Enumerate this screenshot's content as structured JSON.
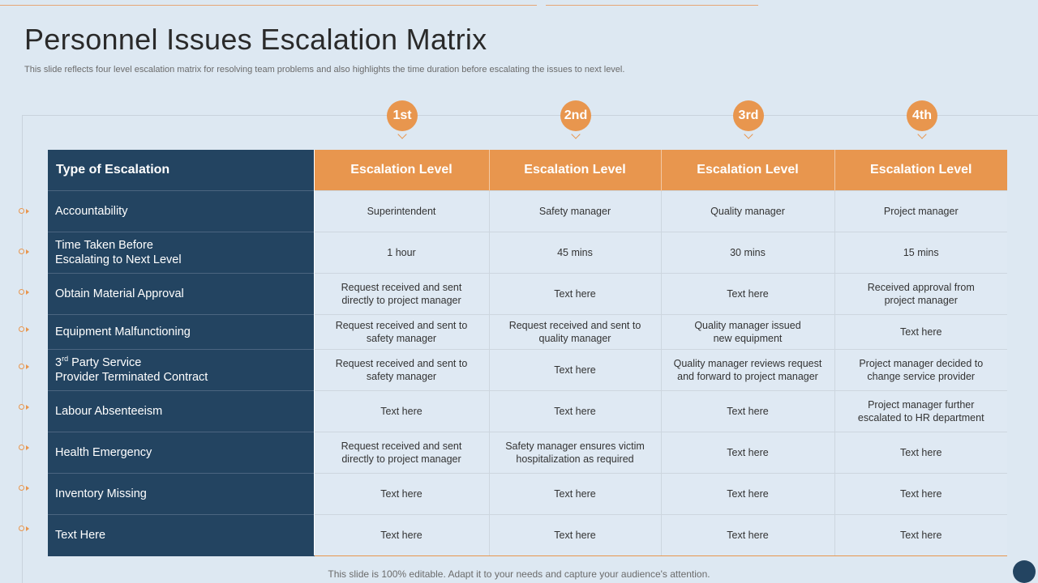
{
  "slide": {
    "title": "Personnel Issues Escalation Matrix",
    "subtitle": "This slide reflects four level escalation matrix for resolving team problems and also highlights the time duration before escalating the issues to next level.",
    "footer": "This slide is 100% editable. Adapt it to your needs and capture your audience's attention."
  },
  "levels": [
    "1st",
    "2nd",
    "3rd",
    "4th"
  ],
  "table": {
    "type_header": "Type of Escalation",
    "level_headers": [
      "Escalation Level",
      "Escalation Level",
      "Escalation Level",
      "Escalation Level"
    ],
    "rows": [
      {
        "type": [
          "Accountability"
        ],
        "cells": [
          [
            "Superintendent"
          ],
          [
            "Safety manager"
          ],
          [
            "Quality manager"
          ],
          [
            "Project manager"
          ]
        ]
      },
      {
        "type": [
          "Time Taken Before",
          "Escalating to Next Level"
        ],
        "cells": [
          [
            "1 hour"
          ],
          [
            "45 mins"
          ],
          [
            "30 mins"
          ],
          [
            "15 mins"
          ]
        ]
      },
      {
        "type": [
          "Obtain Material Approval"
        ],
        "cells": [
          [
            "Request received  and sent",
            "directly to project manager"
          ],
          [
            "Text here"
          ],
          [
            "Text here"
          ],
          [
            "Received  approval  from",
            "project manager"
          ]
        ]
      },
      {
        "type": [
          "Equipment Malfunctioning"
        ],
        "cells": [
          [
            "Request received  and sent to",
            "safety manager"
          ],
          [
            "Request received  and sent to",
            "quality manager"
          ],
          [
            "Quality manager  issued",
            "new equipment"
          ],
          [
            "Text here"
          ]
        ]
      },
      {
        "type_sup": {
          "num": "3",
          "sup": "rd",
          "rest": " Party Service"
        },
        "type": [
          "3rd Party Service",
          "Provider Terminated Contract"
        ],
        "cells": [
          [
            "Request received  and sent to",
            "safety manager"
          ],
          [
            "Text here"
          ],
          [
            "Quality manager reviews  request",
            "and forward  to project manager"
          ],
          [
            "Project manager  decided to",
            "change service  provider"
          ]
        ]
      },
      {
        "type": [
          "Labour Absenteeism"
        ],
        "cells": [
          [
            "Text here"
          ],
          [
            "Text here"
          ],
          [
            "Text here"
          ],
          [
            "Project manager  further",
            "escalated to HR department"
          ]
        ]
      },
      {
        "type": [
          "Health Emergency"
        ],
        "cells": [
          [
            "Request received  and sent",
            "directly to project manager"
          ],
          [
            "Safety manager ensures victim",
            "hospitalization  as required"
          ],
          [
            "Text here"
          ],
          [
            "Text here"
          ]
        ]
      },
      {
        "type": [
          "Inventory Missing"
        ],
        "cells": [
          [
            "Text here"
          ],
          [
            "Text here"
          ],
          [
            "Text here"
          ],
          [
            "Text here"
          ]
        ]
      },
      {
        "type": [
          "Text Here"
        ],
        "cells": [
          [
            "Text here"
          ],
          [
            "Text here"
          ],
          [
            "Text here"
          ],
          [
            "Text here"
          ]
        ]
      }
    ]
  },
  "colors": {
    "navy": "#234461",
    "orange": "#e8964e",
    "background": "#dde8f2"
  }
}
